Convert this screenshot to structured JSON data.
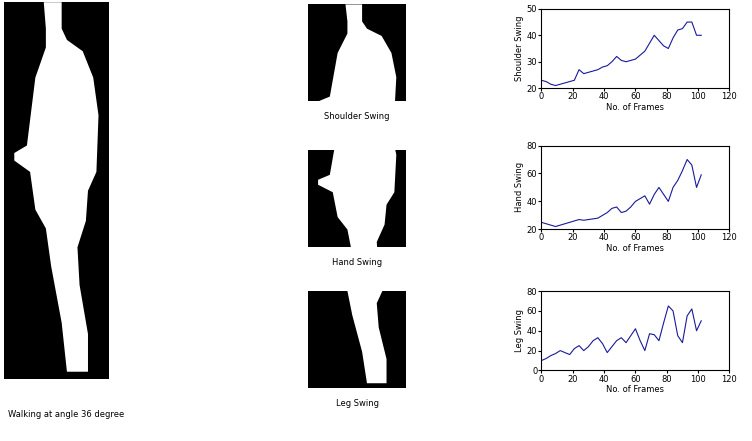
{
  "chart_data": [
    {
      "type": "line",
      "x_label": "No. of Frames",
      "y_label": "Shoulder Swing",
      "color": "#1a1a9c",
      "x": [
        0,
        3,
        6,
        9,
        12,
        15,
        18,
        21,
        24,
        27,
        30,
        33,
        36,
        39,
        42,
        45,
        48,
        51,
        54,
        57,
        60,
        63,
        66,
        69,
        72,
        75,
        78,
        81,
        84,
        87,
        90,
        93,
        96,
        99,
        102
      ],
      "values": [
        23,
        22.5,
        21.5,
        21,
        21.5,
        22,
        22.5,
        23,
        27,
        25.5,
        26,
        26.5,
        27,
        28,
        28.5,
        30,
        32,
        30.5,
        30,
        30.5,
        31,
        32.5,
        34,
        37,
        40,
        38,
        36,
        35,
        39,
        42,
        42.5,
        45,
        45,
        40,
        40
      ],
      "xlim": [
        0,
        120
      ],
      "xticks": [
        0,
        20,
        40,
        60,
        80,
        100,
        120
      ],
      "ylim": [
        20,
        50
      ],
      "yticks": [
        20,
        30,
        40,
        50
      ]
    },
    {
      "type": "line",
      "x_label": "No. of Frames",
      "y_label": "Hand Swing",
      "color": "#1a1a9c",
      "x": [
        0,
        3,
        6,
        9,
        12,
        15,
        18,
        21,
        24,
        27,
        30,
        33,
        36,
        39,
        42,
        45,
        48,
        51,
        54,
        57,
        60,
        63,
        66,
        69,
        72,
        75,
        78,
        81,
        84,
        87,
        90,
        93,
        96,
        99,
        102
      ],
      "values": [
        25,
        24,
        23,
        22,
        23,
        24,
        25,
        26,
        27,
        26.5,
        27,
        27.5,
        28,
        30,
        32,
        35,
        36,
        32,
        33,
        36,
        40,
        42,
        44,
        38,
        45,
        50,
        45,
        40,
        50,
        55,
        62,
        70,
        66,
        50,
        59
      ],
      "xlim": [
        0,
        120
      ],
      "xticks": [
        0,
        20,
        40,
        60,
        80,
        100,
        120
      ],
      "ylim": [
        20,
        80
      ],
      "yticks": [
        20,
        40,
        60,
        80
      ]
    },
    {
      "type": "line",
      "x_label": "No. of Frames",
      "y_label": "Leg Swing",
      "color": "#1a1a9c",
      "x": [
        0,
        3,
        6,
        9,
        12,
        15,
        18,
        21,
        24,
        27,
        30,
        33,
        36,
        39,
        42,
        45,
        48,
        51,
        54,
        57,
        60,
        63,
        66,
        69,
        72,
        75,
        78,
        81,
        84,
        87,
        90,
        93,
        96,
        99,
        102
      ],
      "values": [
        10,
        12,
        15,
        17,
        20,
        18,
        16,
        22,
        25,
        20,
        24,
        30,
        33,
        27,
        18,
        24,
        30,
        33,
        28,
        35,
        42,
        30,
        20,
        37,
        36,
        30,
        48,
        65,
        60,
        35,
        28,
        55,
        62,
        40,
        50
      ],
      "xlim": [
        0,
        120
      ],
      "xticks": [
        0,
        20,
        40,
        60,
        80,
        100,
        120
      ],
      "ylim": [
        0,
        80
      ],
      "yticks": [
        0,
        20,
        40,
        60,
        80
      ]
    }
  ],
  "captions": {
    "silhouette": "Walking at angle 36 degree",
    "parts": [
      "Shoulder Swing",
      "Hand Swing",
      "Leg Swing"
    ]
  }
}
